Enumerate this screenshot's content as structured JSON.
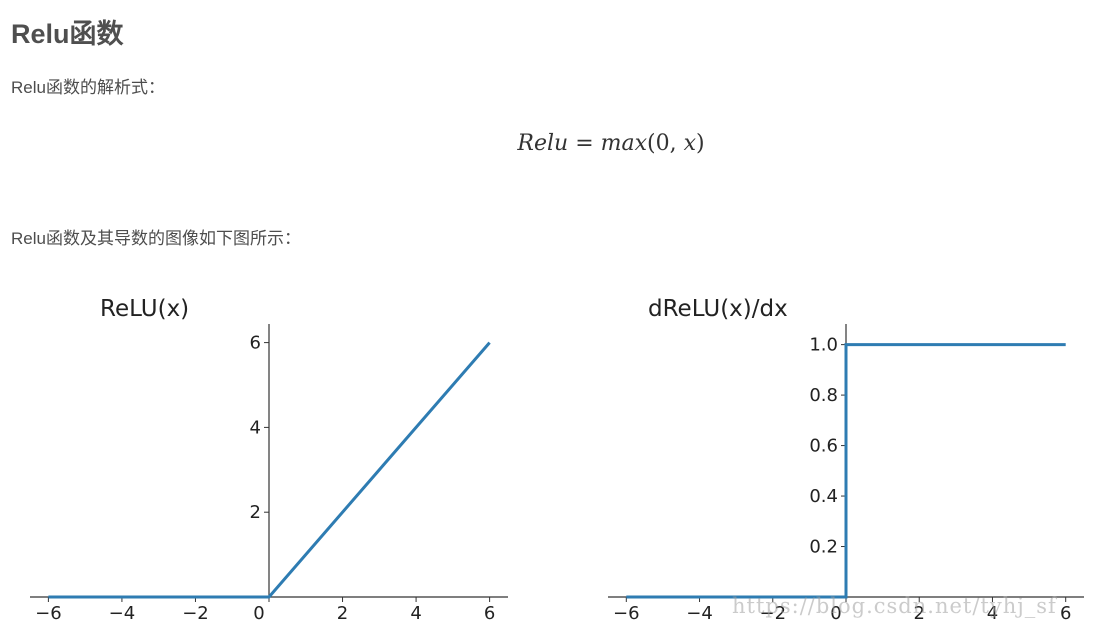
{
  "heading": "Relu函数",
  "paragraph1": "Relu函数的解析式：",
  "formula": {
    "lhs": "Relu",
    "equals": "=",
    "rhs_func": "max",
    "rhs_args": "(0, ",
    "rhs_var": "x",
    "rhs_close": ")"
  },
  "paragraph2": "Relu函数及其导数的图像如下图所示：",
  "watermark": "https://blog.csdn.net/tyhj_sf",
  "colors": {
    "line": "#2e7cb2",
    "axis": "#333333",
    "text": "#4d4d4d"
  },
  "chart_data": [
    {
      "type": "line",
      "title": "ReLU(x)",
      "series": [
        {
          "x": [
            -6,
            0,
            6
          ],
          "y": [
            0,
            0,
            6
          ]
        }
      ],
      "xlim": [
        -6.5,
        6.5
      ],
      "ylim": [
        0,
        6.25
      ],
      "xticks": [
        -6,
        -4,
        -2,
        0,
        2,
        4,
        6
      ],
      "xtick_labels": [
        "−6",
        "−4",
        "−2",
        "0",
        "2",
        "4",
        "6"
      ],
      "yticks": [
        2,
        4,
        6
      ],
      "ytick_labels": [
        "2",
        "4",
        "6"
      ],
      "grid": false
    },
    {
      "type": "line",
      "title": "dReLU(x)/dx",
      "series": [
        {
          "x": [
            -6,
            0,
            0,
            6
          ],
          "y": [
            0,
            0,
            1,
            1
          ]
        }
      ],
      "xlim": [
        -6.5,
        6.5
      ],
      "ylim": [
        0,
        1.05
      ],
      "xticks": [
        -6,
        -4,
        -2,
        0,
        2,
        4,
        6
      ],
      "xtick_labels": [
        "−6",
        "−4",
        "−2",
        "0",
        "2",
        "4",
        "6"
      ],
      "yticks": [
        0.2,
        0.4,
        0.6,
        0.8,
        1.0
      ],
      "ytick_labels": [
        "0.2",
        "0.4",
        "0.6",
        "0.8",
        "1.0"
      ],
      "grid": false
    }
  ]
}
